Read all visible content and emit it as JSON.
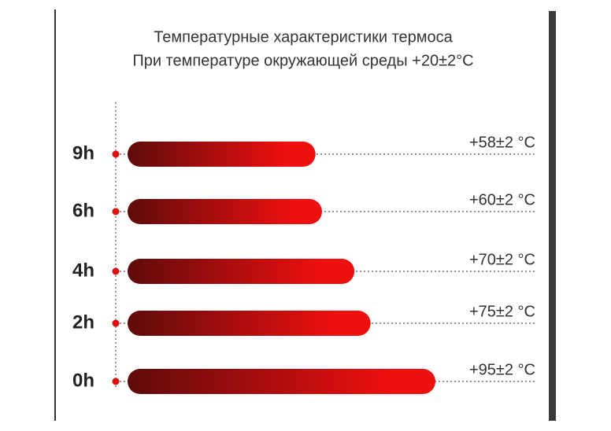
{
  "chart_data": {
    "type": "bar",
    "orientation": "horizontal",
    "title": "Температурные характеристики термоса",
    "subtitle": "При температуре окружающей среды +20±2°C",
    "categories": [
      "9h",
      "6h",
      "4h",
      "2h",
      "0h"
    ],
    "values": [
      58,
      60,
      70,
      75,
      95
    ],
    "value_labels": [
      "+58±2 °C",
      "+60±2 °C",
      "+70±2 °C",
      "+75±2 °C",
      "+95±2 °C"
    ],
    "color": "#ee0f0f"
  }
}
